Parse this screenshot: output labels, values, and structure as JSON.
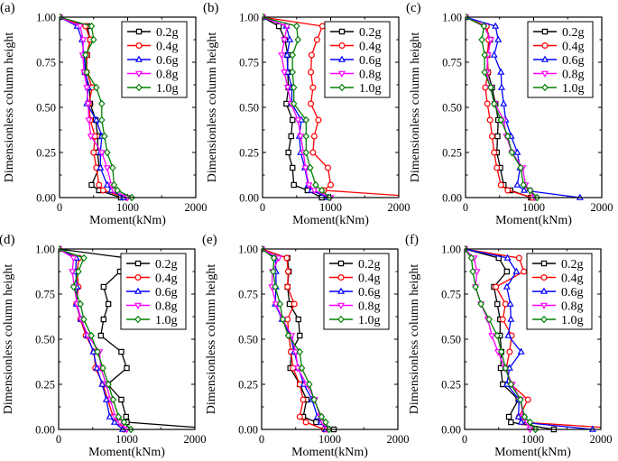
{
  "chart_data": [
    {
      "panel": "(a)",
      "type": "line",
      "xlabel": "Moment(kNm)",
      "ylabel": "Dimensionless column height",
      "xlim": [
        0,
        2000
      ],
      "ylim": [
        0,
        1
      ],
      "xticks": [
        0,
        1000,
        2000
      ],
      "yticks": [
        "0.00",
        "0.25",
        "0.50",
        "0.75",
        "1.00"
      ],
      "legend": "top-right",
      "heights": [
        1.0,
        0.95,
        0.875,
        0.79,
        0.695,
        0.61,
        0.52,
        0.43,
        0.34,
        0.25,
        0.165,
        0.07,
        0.04,
        0.0
      ],
      "series": [
        {
          "name": "0.2g",
          "values": [
            0,
            405,
            450,
            405,
            370,
            440,
            450,
            530,
            560,
            560,
            580,
            470,
            580,
            900
          ]
        },
        {
          "name": "0.4g",
          "values": [
            0,
            380,
            450,
            400,
            400,
            480,
            430,
            450,
            520,
            500,
            540,
            580,
            640,
            980
          ]
        },
        {
          "name": "0.6g",
          "values": [
            0,
            260,
            330,
            360,
            380,
            420,
            400,
            540,
            620,
            600,
            600,
            700,
            760,
            940
          ]
        },
        {
          "name": "0.8g",
          "values": [
            0,
            300,
            350,
            340,
            360,
            400,
            420,
            430,
            460,
            620,
            700,
            760,
            800,
            1000
          ]
        },
        {
          "name": "1.0g",
          "values": [
            0,
            470,
            500,
            380,
            400,
            540,
            620,
            620,
            660,
            700,
            780,
            800,
            850,
            1060
          ]
        }
      ]
    },
    {
      "panel": "(b)",
      "type": "line",
      "xlabel": "Moment(kNm)",
      "ylabel": "Dimensionless column height",
      "xlim": [
        0,
        2000
      ],
      "ylim": [
        0,
        1
      ],
      "xticks": [
        0,
        1000,
        2000
      ],
      "yticks": [
        "0.00",
        "0.25",
        "0.50",
        "0.75",
        "1.00"
      ],
      "legend": "top-right",
      "heights": [
        1.0,
        0.95,
        0.875,
        0.79,
        0.695,
        0.61,
        0.52,
        0.43,
        0.34,
        0.25,
        0.165,
        0.07,
        0.04,
        0.0
      ],
      "series": [
        {
          "name": "0.2g",
          "values": [
            0,
            240,
            330,
            370,
            370,
            380,
            350,
            440,
            420,
            380,
            440,
            460,
            660,
            870
          ]
        },
        {
          "name": "0.4g",
          "values": [
            0,
            880,
            800,
            720,
            710,
            740,
            710,
            820,
            760,
            740,
            960,
            1000,
            900,
            2000
          ]
        },
        {
          "name": "0.6g",
          "values": [
            0,
            350,
            400,
            360,
            370,
            430,
            430,
            570,
            540,
            560,
            620,
            670,
            720,
            960
          ]
        },
        {
          "name": "0.8g",
          "values": [
            0,
            360,
            320,
            280,
            320,
            370,
            420,
            520,
            560,
            600,
            630,
            680,
            760,
            1000
          ]
        },
        {
          "name": "1.0g",
          "values": [
            0,
            500,
            520,
            440,
            440,
            460,
            460,
            640,
            640,
            640,
            700,
            780,
            870,
            980
          ]
        }
      ]
    },
    {
      "panel": "(c)",
      "type": "line",
      "xlabel": "Moment(kNm)",
      "ylabel": "Dimensionless column height",
      "xlim": [
        0,
        2000
      ],
      "ylim": [
        0,
        1
      ],
      "xticks": [
        0,
        1000,
        2000
      ],
      "yticks": [
        "0.00",
        "0.25",
        "0.50",
        "0.75",
        "1.00"
      ],
      "legend": "top-right",
      "heights": [
        1.0,
        0.95,
        0.875,
        0.79,
        0.695,
        0.61,
        0.52,
        0.43,
        0.34,
        0.25,
        0.165,
        0.07,
        0.04,
        0.0
      ],
      "series": [
        {
          "name": "0.2g",
          "values": [
            0,
            300,
            360,
            320,
            330,
            390,
            440,
            480,
            470,
            460,
            510,
            560,
            660,
            960
          ]
        },
        {
          "name": "0.4g",
          "values": [
            0,
            310,
            340,
            320,
            330,
            290,
            320,
            360,
            390,
            420,
            460,
            520,
            620,
            980
          ]
        },
        {
          "name": "0.6g",
          "values": [
            0,
            440,
            480,
            420,
            520,
            530,
            560,
            590,
            670,
            760,
            800,
            760,
            860,
            1680
          ]
        },
        {
          "name": "0.8g",
          "values": [
            0,
            270,
            370,
            330,
            310,
            360,
            430,
            560,
            600,
            680,
            840,
            880,
            940,
            1020
          ]
        },
        {
          "name": "1.0g",
          "values": [
            0,
            270,
            240,
            280,
            280,
            370,
            420,
            520,
            620,
            680,
            810,
            850,
            950,
            1050
          ]
        }
      ]
    },
    {
      "panel": "(d)",
      "type": "line",
      "xlabel": "Moment(kNm)",
      "ylabel": "Dimensionless column height",
      "xlim": [
        0,
        2000
      ],
      "ylim": [
        0,
        1
      ],
      "xticks": [
        0,
        1000,
        2000
      ],
      "yticks": [
        "0.00",
        "0.25",
        "0.50",
        "0.75",
        "1.00"
      ],
      "legend": "top-right",
      "heights": [
        1.0,
        0.95,
        0.875,
        0.79,
        0.695,
        0.61,
        0.52,
        0.43,
        0.34,
        0.25,
        0.165,
        0.07,
        0.04,
        0.0
      ],
      "series": [
        {
          "name": "0.2g",
          "values": [
            0,
            1000,
            900,
            660,
            730,
            660,
            620,
            920,
            1000,
            720,
            920,
            990,
            1000,
            2000
          ]
        },
        {
          "name": "0.4g",
          "values": [
            0,
            300,
            270,
            290,
            260,
            320,
            400,
            520,
            540,
            650,
            720,
            800,
            880,
            960
          ]
        },
        {
          "name": "0.6g",
          "values": [
            0,
            260,
            250,
            270,
            260,
            330,
            420,
            510,
            560,
            640,
            700,
            750,
            820,
            940
          ]
        },
        {
          "name": "0.8g",
          "values": [
            0,
            220,
            200,
            230,
            270,
            330,
            430,
            600,
            620,
            700,
            760,
            830,
            900,
            1000
          ]
        },
        {
          "name": "1.0g",
          "values": [
            0,
            370,
            290,
            220,
            320,
            370,
            480,
            570,
            650,
            730,
            800,
            880,
            960,
            1060
          ]
        }
      ]
    },
    {
      "panel": "(e)",
      "type": "line",
      "xlabel": "Moment(kNm)",
      "ylabel": "Dimensionless column height",
      "xlim": [
        0,
        2000
      ],
      "ylim": [
        0,
        1
      ],
      "xticks": [
        0,
        1000,
        2000
      ],
      "yticks": [
        "0.00",
        "0.25",
        "0.50",
        "0.75",
        "1.00"
      ],
      "legend": "top-right",
      "heights": [
        1.0,
        0.95,
        0.875,
        0.79,
        0.695,
        0.61,
        0.52,
        0.43,
        0.34,
        0.25,
        0.165,
        0.07,
        0.04,
        0.0
      ],
      "series": [
        {
          "name": "0.2g",
          "values": [
            0,
            380,
            400,
            380,
            410,
            540,
            560,
            440,
            420,
            560,
            660,
            610,
            800,
            1060
          ]
        },
        {
          "name": "0.4g",
          "values": [
            0,
            370,
            390,
            380,
            480,
            380,
            400,
            430,
            460,
            560,
            610,
            560,
            650,
            920
          ]
        },
        {
          "name": "0.6g",
          "values": [
            0,
            200,
            210,
            210,
            200,
            300,
            420,
            480,
            540,
            620,
            740,
            820,
            870,
            940
          ]
        },
        {
          "name": "0.8g",
          "values": [
            0,
            250,
            160,
            150,
            210,
            310,
            440,
            500,
            530,
            660,
            780,
            860,
            900,
            960
          ]
        },
        {
          "name": "1.0g",
          "values": [
            0,
            180,
            170,
            200,
            270,
            310,
            390,
            560,
            590,
            700,
            770,
            880,
            940,
            990
          ]
        }
      ]
    },
    {
      "panel": "(f)",
      "type": "line",
      "xlabel": "Moment(kNm)",
      "ylabel": "Dimensionless column height",
      "xlim": [
        0,
        2000
      ],
      "ylim": [
        0,
        1
      ],
      "xticks": [
        0,
        1000,
        2000
      ],
      "yticks": [
        "0.00",
        "0.25",
        "0.50",
        "0.75",
        "1.00"
      ],
      "legend": "top-right",
      "heights": [
        1.0,
        0.95,
        0.875,
        0.79,
        0.695,
        0.61,
        0.52,
        0.43,
        0.34,
        0.25,
        0.165,
        0.07,
        0.04,
        0.0
      ],
      "series": [
        {
          "name": "0.2g",
          "values": [
            0,
            500,
            620,
            430,
            480,
            520,
            520,
            540,
            530,
            560,
            790,
            650,
            680,
            1310
          ]
        },
        {
          "name": "0.4g",
          "values": [
            0,
            800,
            870,
            460,
            600,
            560,
            690,
            660,
            610,
            680,
            930,
            800,
            850,
            2000
          ]
        },
        {
          "name": "0.6g",
          "values": [
            0,
            630,
            760,
            620,
            670,
            680,
            640,
            830,
            660,
            620,
            800,
            790,
            830,
            1880
          ]
        },
        {
          "name": "0.8g",
          "values": [
            0,
            140,
            180,
            160,
            240,
            340,
            400,
            490,
            590,
            700,
            820,
            860,
            920,
            960
          ]
        },
        {
          "name": "1.0g",
          "values": [
            0,
            100,
            120,
            160,
            240,
            360,
            480,
            540,
            600,
            680,
            820,
            880,
            960,
            1040
          ]
        }
      ]
    }
  ],
  "series_colors": [
    "#000000",
    "#ff0000",
    "#0000ff",
    "#ff00ff",
    "#008000"
  ],
  "series_markers": [
    "square",
    "circle",
    "triangle-up",
    "triangle-down",
    "diamond"
  ]
}
